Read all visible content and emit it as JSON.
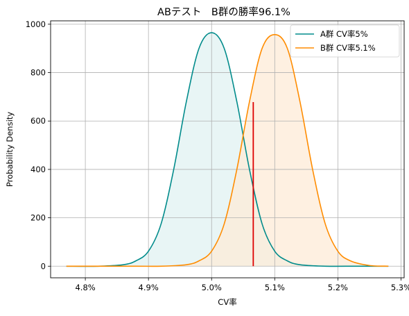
{
  "chart_data": {
    "type": "line",
    "title": "ABテスト　B群の勝率96.1%",
    "xlabel": "CV率",
    "ylabel": "Probability Density",
    "xlim": [
      0.04745,
      0.05305
    ],
    "ylim": [
      -48,
      1014
    ],
    "x_ticks": [
      0.048,
      0.049,
      0.05,
      0.051,
      0.052,
      0.053
    ],
    "x_tick_labels": [
      "4.8%",
      "4.9%",
      "5.0%",
      "5.1%",
      "5.2%",
      "5.3%"
    ],
    "y_ticks": [
      0,
      200,
      400,
      600,
      800,
      1000
    ],
    "y_tick_labels": [
      "0",
      "200",
      "400",
      "600",
      "800",
      "1000"
    ],
    "grid": true,
    "legend_position": "top-right",
    "series": [
      {
        "name": "A群 CV率5%",
        "color": "#008b8b",
        "fill": "#e0f2f2",
        "x": [
          0.0477,
          0.0482,
          0.0486,
          0.0488,
          0.049,
          0.0492,
          0.0494,
          0.0496,
          0.0498,
          0.05,
          0.0502,
          0.0504,
          0.0506,
          0.0508,
          0.051,
          0.0512,
          0.0514,
          0.0518,
          0.0523,
          0.0528
        ],
        "y": [
          0,
          0,
          6,
          22,
          62,
          175,
          400,
          680,
          900,
          965,
          900,
          680,
          400,
          175,
          62,
          22,
          6,
          0,
          0,
          0
        ]
      },
      {
        "name": "B群 CV率5.1%",
        "color": "#ff8c00",
        "fill": "#fdebd7",
        "x": [
          0.0477,
          0.0482,
          0.0488,
          0.0492,
          0.0496,
          0.0498,
          0.05,
          0.0502,
          0.0504,
          0.0506,
          0.0508,
          0.051,
          0.0512,
          0.0514,
          0.0516,
          0.0518,
          0.052,
          0.0522,
          0.0525,
          0.0528
        ],
        "y": [
          0,
          0,
          0,
          0,
          6,
          22,
          62,
          175,
          400,
          680,
          900,
          957,
          900,
          680,
          400,
          175,
          62,
          22,
          3,
          0
        ]
      }
    ],
    "vline": {
      "x": 0.05066,
      "y0": 0,
      "y1": 678,
      "color": "#dd0000"
    }
  }
}
